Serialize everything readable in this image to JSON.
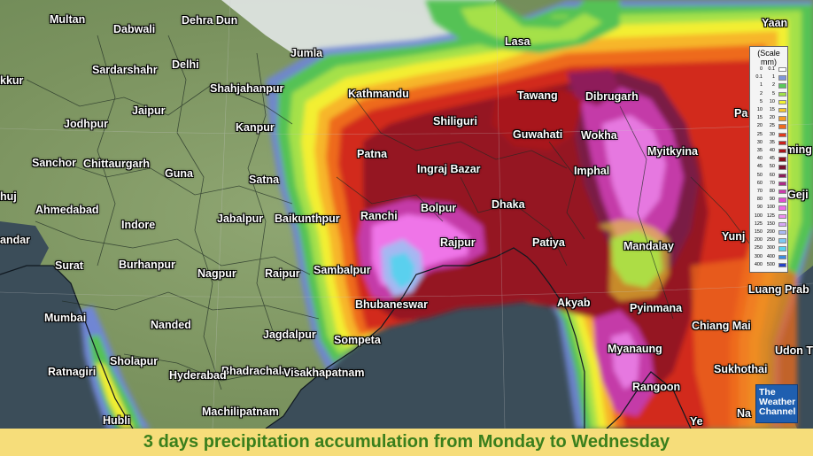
{
  "map": {
    "cities": [
      {
        "id": "multan",
        "label": "Multan"
      },
      {
        "id": "dehra-dun",
        "label": "Dehra Dun"
      },
      {
        "id": "dabwali",
        "label": "Dabwali"
      },
      {
        "id": "jumla",
        "label": "Jumla"
      },
      {
        "id": "lasa",
        "label": "Lasa"
      },
      {
        "id": "yaan",
        "label": "Yaan"
      },
      {
        "id": "sardarshahr",
        "label": "Sardarshahr"
      },
      {
        "id": "delhi",
        "label": "Delhi"
      },
      {
        "id": "kkur",
        "label": "kkur"
      },
      {
        "id": "shahjahanpur",
        "label": "Shahjahanpur"
      },
      {
        "id": "kathmandu",
        "label": "Kathmandu"
      },
      {
        "id": "tawang",
        "label": "Tawang"
      },
      {
        "id": "dibrugarh",
        "label": "Dibrugarh"
      },
      {
        "id": "pa",
        "label": "Pa"
      },
      {
        "id": "jaipur",
        "label": "Jaipur"
      },
      {
        "id": "jodhpur",
        "label": "Jodhpur"
      },
      {
        "id": "kanpur",
        "label": "Kanpur"
      },
      {
        "id": "shiliguri",
        "label": "Shiliguri"
      },
      {
        "id": "guwahati",
        "label": "Guwahati"
      },
      {
        "id": "wokha",
        "label": "Wokha"
      },
      {
        "id": "myitkyina",
        "label": "Myitkyina"
      },
      {
        "id": "ming",
        "label": "ming"
      },
      {
        "id": "patna",
        "label": "Patna"
      },
      {
        "id": "sanchor",
        "label": "Sanchor"
      },
      {
        "id": "chittaurgarh",
        "label": "Chittaurgarh"
      },
      {
        "id": "ingraj-bazar",
        "label": "Ingraj Bazar"
      },
      {
        "id": "imphal",
        "label": "Imphal"
      },
      {
        "id": "guna",
        "label": "Guna"
      },
      {
        "id": "satna",
        "label": "Satna"
      },
      {
        "id": "huj",
        "label": "huj"
      },
      {
        "id": "geji",
        "label": "Geji"
      },
      {
        "id": "dhaka",
        "label": "Dhaka"
      },
      {
        "id": "ahmedabad",
        "label": "Ahmedabad"
      },
      {
        "id": "bolpur",
        "label": "Bolpur"
      },
      {
        "id": "jabalpur",
        "label": "Jabalpur"
      },
      {
        "id": "baikunthpur",
        "label": "Baikunthpur"
      },
      {
        "id": "ranchi",
        "label": "Ranchi"
      },
      {
        "id": "indore",
        "label": "Indore"
      },
      {
        "id": "andar",
        "label": "andar"
      },
      {
        "id": "yunj",
        "label": "Yunj"
      },
      {
        "id": "rajpur",
        "label": "Rajpur"
      },
      {
        "id": "patiya",
        "label": "Patiya"
      },
      {
        "id": "mandalay",
        "label": "Mandalay"
      },
      {
        "id": "surat",
        "label": "Surat"
      },
      {
        "id": "burhanpur",
        "label": "Burhanpur"
      },
      {
        "id": "nagpur",
        "label": "Nagpur"
      },
      {
        "id": "raipur",
        "label": "Raipur"
      },
      {
        "id": "sambalpur",
        "label": "Sambalpur"
      },
      {
        "id": "luang-prabang",
        "label": "Luang Prab"
      },
      {
        "id": "bhubaneswar",
        "label": "Bhubaneswar"
      },
      {
        "id": "akyab",
        "label": "Akyab"
      },
      {
        "id": "pyinmana",
        "label": "Pyinmana"
      },
      {
        "id": "mumbai",
        "label": "Mumbai"
      },
      {
        "id": "nanded",
        "label": "Nanded"
      },
      {
        "id": "chiang-mai",
        "label": "Chiang Mai"
      },
      {
        "id": "jagdalpur",
        "label": "Jagdalpur"
      },
      {
        "id": "sompeta",
        "label": "Sompeta"
      },
      {
        "id": "myanaung",
        "label": "Myanaung"
      },
      {
        "id": "udon-t",
        "label": "Udon T"
      },
      {
        "id": "sholapur",
        "label": "Sholapur"
      },
      {
        "id": "ratnagiri",
        "label": "Ratnagiri"
      },
      {
        "id": "bhadrachalam",
        "label": "Bhadrachalam"
      },
      {
        "id": "visakhapatnam",
        "label": "Visakhapatnam"
      },
      {
        "id": "hyderabad",
        "label": "Hyderabad"
      },
      {
        "id": "sukhothai",
        "label": "Sukhothai"
      },
      {
        "id": "rangoon",
        "label": "Rangoon"
      },
      {
        "id": "machilipatnam",
        "label": "Machilipatnam"
      },
      {
        "id": "hubli",
        "label": "Hubli"
      },
      {
        "id": "na",
        "label": "Na"
      },
      {
        "id": "ye",
        "label": "Ye"
      }
    ]
  },
  "legend": {
    "title": "(Scale",
    "units": "mm)",
    "rows": [
      {
        "lo": "0",
        "hi": "0.1",
        "color": "#ffffff"
      },
      {
        "lo": "0.1",
        "hi": "1",
        "color": "#7f96d8"
      },
      {
        "lo": "1",
        "hi": "2",
        "color": "#59c85a"
      },
      {
        "lo": "2",
        "hi": "5",
        "color": "#9fe04a"
      },
      {
        "lo": "5",
        "hi": "10",
        "color": "#f2f231"
      },
      {
        "lo": "10",
        "hi": "15",
        "color": "#f7c62a"
      },
      {
        "lo": "15",
        "hi": "20",
        "color": "#f59a22"
      },
      {
        "lo": "20",
        "hi": "25",
        "color": "#ef6a1d"
      },
      {
        "lo": "25",
        "hi": "30",
        "color": "#e2391c"
      },
      {
        "lo": "30",
        "hi": "35",
        "color": "#c81f1c"
      },
      {
        "lo": "35",
        "hi": "40",
        "color": "#a8141b"
      },
      {
        "lo": "40",
        "hi": "45",
        "color": "#8a0e1b"
      },
      {
        "lo": "45",
        "hi": "50",
        "color": "#7a1230"
      },
      {
        "lo": "50",
        "hi": "60",
        "color": "#8e1d5a"
      },
      {
        "lo": "60",
        "hi": "70",
        "color": "#ad2a86"
      },
      {
        "lo": "70",
        "hi": "80",
        "color": "#cb3aac"
      },
      {
        "lo": "80",
        "hi": "90",
        "color": "#e04dd0"
      },
      {
        "lo": "90",
        "hi": "100",
        "color": "#ee6ee6"
      },
      {
        "lo": "100",
        "hi": "125",
        "color": "#f08ef2"
      },
      {
        "lo": "125",
        "hi": "150",
        "color": "#d6a6f4"
      },
      {
        "lo": "150",
        "hi": "200",
        "color": "#a9b9f2"
      },
      {
        "lo": "200",
        "hi": "250",
        "color": "#7fc8f0"
      },
      {
        "lo": "250",
        "hi": "300",
        "color": "#5ad2ee"
      },
      {
        "lo": "300",
        "hi": "400",
        "color": "#3b8be0"
      },
      {
        "lo": "400",
        "hi": "500",
        "color": "#2440c8"
      }
    ]
  },
  "logo": {
    "line1": "The",
    "line2": "Weather",
    "line3": "Channel"
  },
  "caption": "3 days precipitation accumulation from Monday to Wednesday",
  "colors": {
    "caption_bg": "#f6dd7a",
    "caption_text": "#3a7f1c",
    "sea": "#3b4d59",
    "land": "#7f9a67",
    "logo_bg": "#1f5fb0"
  }
}
